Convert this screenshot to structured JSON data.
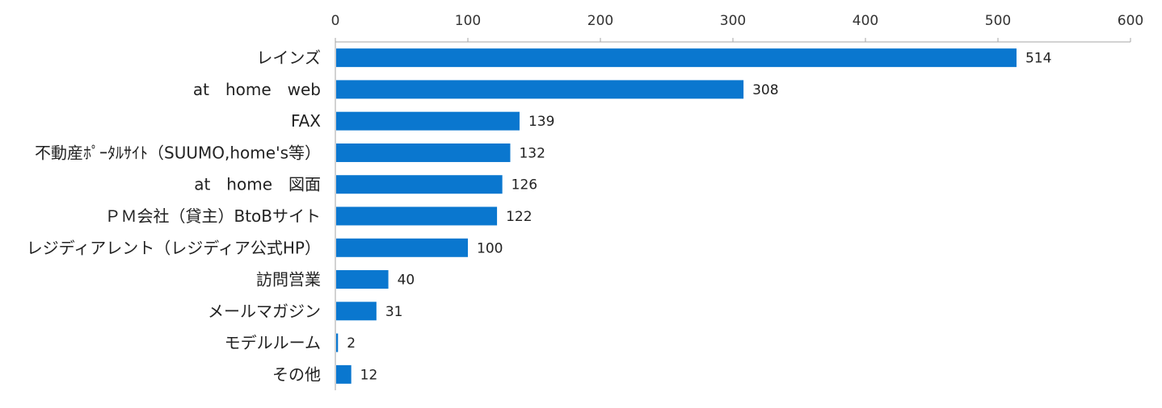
{
  "chart_data": {
    "type": "bar",
    "orientation": "horizontal",
    "categories": [
      "レインズ",
      "at　home　web",
      "FAX",
      "不動産ﾎﾟｰﾀﾙｻｲﾄ（SUUMO,home's等）",
      "at　home　図面",
      "ＰＭ会社（貸主）BtoBサイト",
      "レジディアレント（レジディア公式HP）",
      "訪問営業",
      "メールマガジン",
      "モデルルーム",
      "その他"
    ],
    "values": [
      514,
      308,
      139,
      132,
      126,
      122,
      100,
      40,
      31,
      2,
      12
    ],
    "xlim": [
      0,
      600
    ],
    "xticks": [
      0,
      100,
      200,
      300,
      400,
      500,
      600
    ],
    "x_axis_position": "top",
    "data_labels": true,
    "grid": false,
    "legend": "none",
    "bar_color": "#0A77CF"
  }
}
